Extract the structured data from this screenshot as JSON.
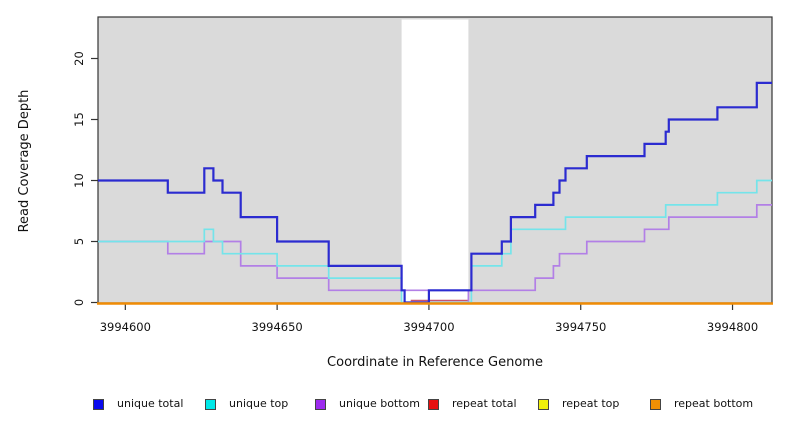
{
  "figure": {
    "plot_background": "#DADADA",
    "masked_region_color": "#FFFFFF",
    "axis_color": "#333333",
    "text_color": "#111111"
  },
  "chart_data": {
    "type": "line",
    "subtype": "step-coverage",
    "title": "",
    "xlabel": "Coordinate in Reference Genome",
    "ylabel": "Read Coverage Depth",
    "xlim": [
      3994591,
      3994813
    ],
    "ylim": [
      0,
      23.4
    ],
    "x_ticks": [
      "3994600",
      "3994650",
      "3994700",
      "3994750",
      "3994800"
    ],
    "x_tick_values": [
      3994600,
      3994650,
      3994700,
      3994750,
      3994800
    ],
    "y_ticks": [
      "0",
      "5",
      "10",
      "15",
      "20"
    ],
    "y_tick_values": [
      0,
      5,
      10,
      15,
      20
    ],
    "grid": false,
    "legend_position": "bottom",
    "masked_region": [
      3994691,
      3994713
    ],
    "series": [
      {
        "name": "repeat total",
        "line_color": "#C9536F",
        "legend_color": "#E81111",
        "points": [
          [
            3994591,
            0
          ]
        ],
        "drawn_segment": [
          3994694,
          3994713
        ]
      },
      {
        "name": "repeat top",
        "line_color": "#F0F000",
        "legend_color": "#F0F00A",
        "points": [
          [
            3994591,
            0
          ]
        ],
        "hidden": true
      },
      {
        "name": "unique bottom",
        "line_color": "#B27FE6",
        "legend_color": "#9D2BEE",
        "points": [
          [
            3994591,
            5
          ],
          [
            3994614,
            4
          ],
          [
            3994626,
            5
          ],
          [
            3994638,
            3
          ],
          [
            3994650,
            2
          ],
          [
            3994667,
            1
          ],
          [
            3994700,
            0
          ],
          [
            3994713,
            1
          ],
          [
            3994735,
            2
          ],
          [
            3994741,
            3
          ],
          [
            3994743,
            4
          ],
          [
            3994752,
            5
          ],
          [
            3994771,
            6
          ],
          [
            3994779,
            7
          ],
          [
            3994808,
            8
          ]
        ]
      },
      {
        "name": "unique top",
        "line_color": "#74E4EA",
        "legend_color": "#00E8E8",
        "points": [
          [
            3994591,
            5
          ],
          [
            3994626,
            6
          ],
          [
            3994629,
            5
          ],
          [
            3994632,
            4
          ],
          [
            3994650,
            3
          ],
          [
            3994667,
            2
          ],
          [
            3994691,
            0
          ],
          [
            3994714,
            3
          ],
          [
            3994724,
            4
          ],
          [
            3994727,
            6
          ],
          [
            3994745,
            7
          ],
          [
            3994778,
            8
          ],
          [
            3994795,
            9
          ],
          [
            3994808,
            10
          ]
        ]
      },
      {
        "name": "unique total",
        "line_color": "#2B2BD0",
        "legend_color": "#0A0AEE",
        "points": [
          [
            3994591,
            10
          ],
          [
            3994614,
            9
          ],
          [
            3994626,
            11
          ],
          [
            3994629,
            10
          ],
          [
            3994632,
            9
          ],
          [
            3994638,
            7
          ],
          [
            3994650,
            5
          ],
          [
            3994667,
            3
          ],
          [
            3994691,
            1
          ],
          [
            3994692,
            0
          ],
          [
            3994700,
            1
          ],
          [
            3994714,
            4
          ],
          [
            3994724,
            5
          ],
          [
            3994727,
            7
          ],
          [
            3994735,
            8
          ],
          [
            3994741,
            9
          ],
          [
            3994743,
            10
          ],
          [
            3994745,
            11
          ],
          [
            3994752,
            12
          ],
          [
            3994771,
            13
          ],
          [
            3994778,
            14
          ],
          [
            3994779,
            15
          ],
          [
            3994795,
            16
          ],
          [
            3994808,
            18
          ]
        ]
      },
      {
        "name": "repeat bottom",
        "line_color": "#F08C05",
        "legend_color": "#F09005",
        "points": [
          [
            3994591,
            0
          ]
        ]
      }
    ]
  },
  "legend": {
    "items": [
      {
        "label": "unique total",
        "color": "#0A0AEE"
      },
      {
        "label": "unique top",
        "color": "#00E8E8"
      },
      {
        "label": "unique bottom",
        "color": "#9D2BEE"
      },
      {
        "label": "repeat total",
        "color": "#E81111"
      },
      {
        "label": "repeat top",
        "color": "#F0F00A"
      },
      {
        "label": "repeat bottom",
        "color": "#F09005"
      }
    ]
  }
}
